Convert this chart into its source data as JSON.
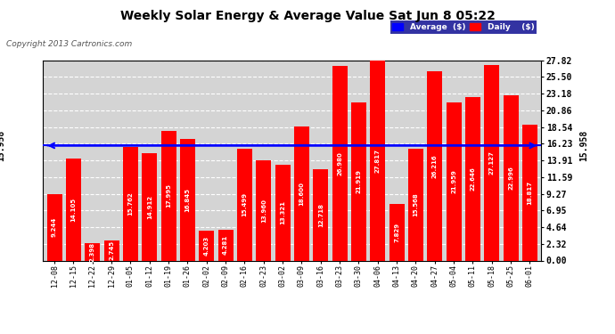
{
  "title": "Weekly Solar Energy & Average Value Sat Jun 8 05:22",
  "copyright": "Copyright 2013 Cartronics.com",
  "categories": [
    "12-08",
    "12-15",
    "12-22",
    "12-29",
    "01-05",
    "01-12",
    "01-19",
    "01-26",
    "02-02",
    "02-09",
    "02-16",
    "02-23",
    "03-02",
    "03-09",
    "03-16",
    "03-23",
    "03-30",
    "04-06",
    "04-13",
    "04-20",
    "04-27",
    "05-04",
    "05-11",
    "05-18",
    "05-25",
    "06-01"
  ],
  "values": [
    9.244,
    14.105,
    2.398,
    2.745,
    15.762,
    14.912,
    17.995,
    16.845,
    4.203,
    4.281,
    15.499,
    13.96,
    13.321,
    18.6,
    12.718,
    26.98,
    21.919,
    27.817,
    7.829,
    15.568,
    26.216,
    21.959,
    22.646,
    27.127,
    22.996,
    18.817
  ],
  "average_value": 15.958,
  "bar_color": "#ff0000",
  "average_line_color": "#0000ff",
  "background_color": "#ffffff",
  "plot_bg_color": "#d4d4d4",
  "yticks": [
    0.0,
    2.32,
    4.64,
    6.95,
    9.27,
    11.59,
    13.91,
    16.23,
    18.54,
    20.86,
    23.18,
    25.5,
    27.82
  ],
  "ylim": [
    0,
    27.82
  ],
  "legend_avg_color": "#0000ff",
  "legend_daily_color": "#ff0000",
  "avg_label": "15.958"
}
